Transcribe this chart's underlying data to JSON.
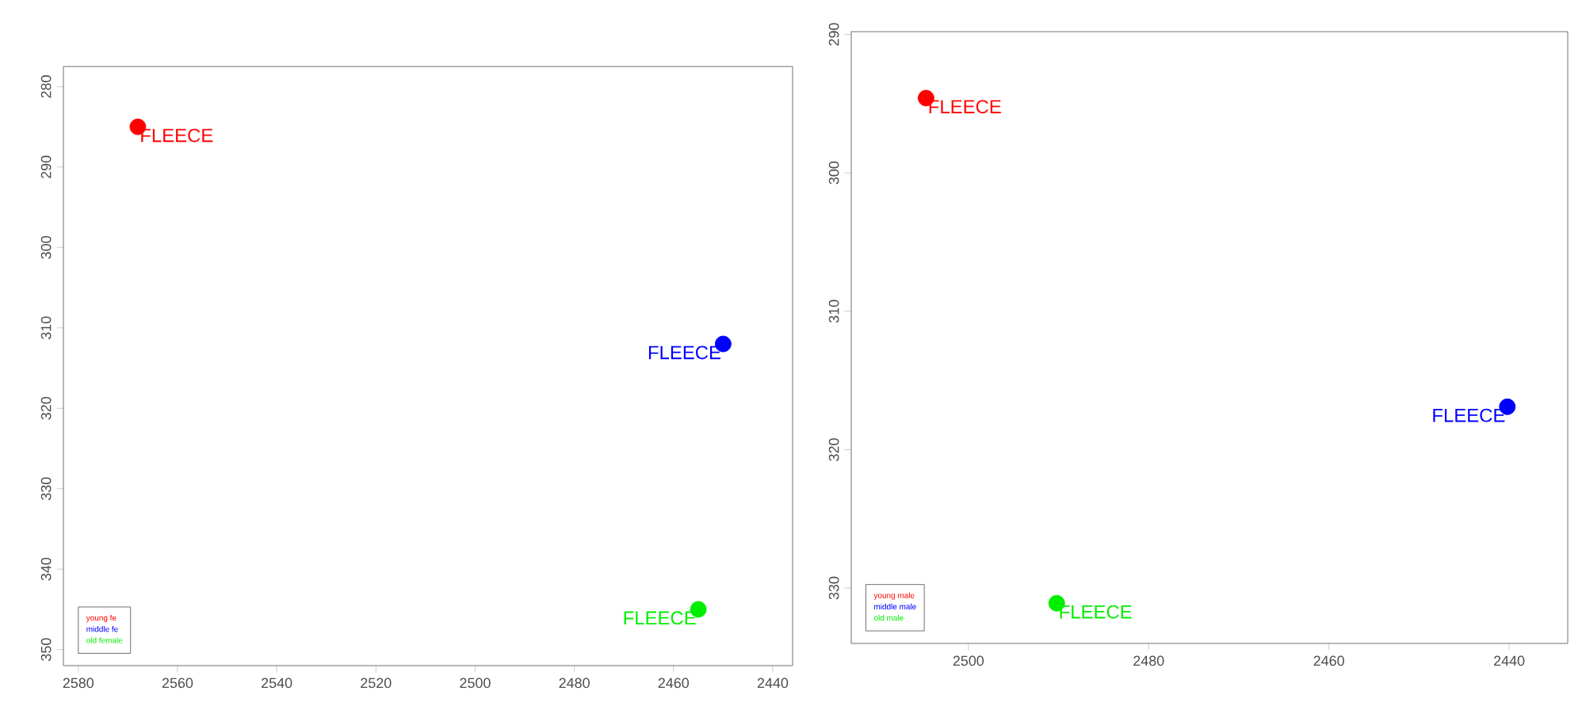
{
  "chart_data": [
    {
      "type": "scatter",
      "marker": "circle",
      "legend": "bottom left",
      "xlim": [
        2583,
        2436
      ],
      "ylim": [
        352,
        277.5
      ],
      "xticks": [
        2580,
        2560,
        2540,
        2520,
        2500,
        2480,
        2460,
        2440
      ],
      "yticks": [
        280,
        290,
        300,
        310,
        320,
        330,
        340,
        350
      ],
      "series": [
        {
          "name": "young fe",
          "color": "#ff0000",
          "x": [
            2568
          ],
          "values": [
            285
          ]
        },
        {
          "name": "middle fe",
          "color": "#0000ff",
          "x": [
            2450
          ],
          "values": [
            312
          ]
        },
        {
          "name": "old female",
          "color": "#00ee00",
          "x": [
            2455
          ],
          "values": [
            345
          ]
        }
      ],
      "annotations": [
        {
          "text": "FLEECE",
          "x": 2568,
          "y": 285
        },
        {
          "text": "FLEECE",
          "x": 2450,
          "y": 312
        },
        {
          "text": "FLEECE",
          "x": 2455,
          "y": 345
        }
      ]
    },
    {
      "type": "scatter",
      "marker": "circle",
      "legend": "bottom left",
      "xlim": [
        2513,
        2433.5
      ],
      "ylim": [
        334,
        289.8
      ],
      "xticks": [
        2500,
        2480,
        2460,
        2440
      ],
      "yticks": [
        290,
        300,
        310,
        320,
        330
      ],
      "series": [
        {
          "name": "young male",
          "color": "#ff0000",
          "x": [
            2504.7
          ],
          "values": [
            294.6
          ]
        },
        {
          "name": "middle male",
          "color": "#0000ff",
          "x": [
            2440.2
          ],
          "values": [
            316.9
          ]
        },
        {
          "name": "old male",
          "color": "#00ee00",
          "x": [
            2490.2
          ],
          "values": [
            331.1
          ]
        }
      ],
      "annotations": [
        {
          "text": "FLEECE",
          "x": 2504.7,
          "y": 294.6
        },
        {
          "text": "FLEECE",
          "x": 2440.2,
          "y": 316.9
        },
        {
          "text": "FLEECE",
          "x": 2490.2,
          "y": 331.1
        }
      ]
    }
  ]
}
